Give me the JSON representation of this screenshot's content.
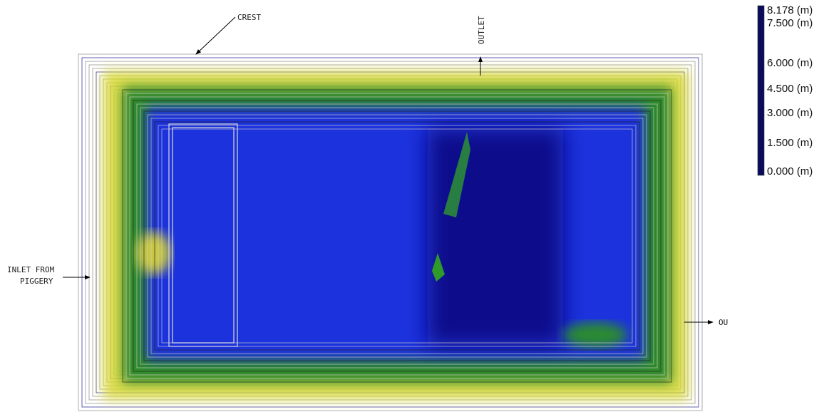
{
  "annotations": {
    "crest": "CREST",
    "outlet_top": "OUTLET",
    "inlet_line1": "INLET FROM",
    "inlet_line2": "PIGGERY",
    "outlet_right": "OU"
  },
  "legend": {
    "entries": [
      {
        "value": 8.178,
        "label": "8.178 (m)",
        "color": "#0b0b5c"
      },
      {
        "value": 7.5,
        "label": "7.500 (m)",
        "color": "#06067e"
      },
      {
        "value": 6.0,
        "label": "6.000 (m)",
        "color": "#1d2ee6"
      },
      {
        "value": 4.5,
        "label": "4.500 (m)",
        "color": "#1f8a2a"
      },
      {
        "value": 3.0,
        "label": "3.000 (m)",
        "color": "#7a8a14"
      },
      {
        "value": 1.5,
        "label": "1.500 (m)",
        "color": "#ecec1c"
      },
      {
        "value": 0.0,
        "label": "0.000 (m)",
        "color": "#ffffff"
      }
    ]
  }
}
